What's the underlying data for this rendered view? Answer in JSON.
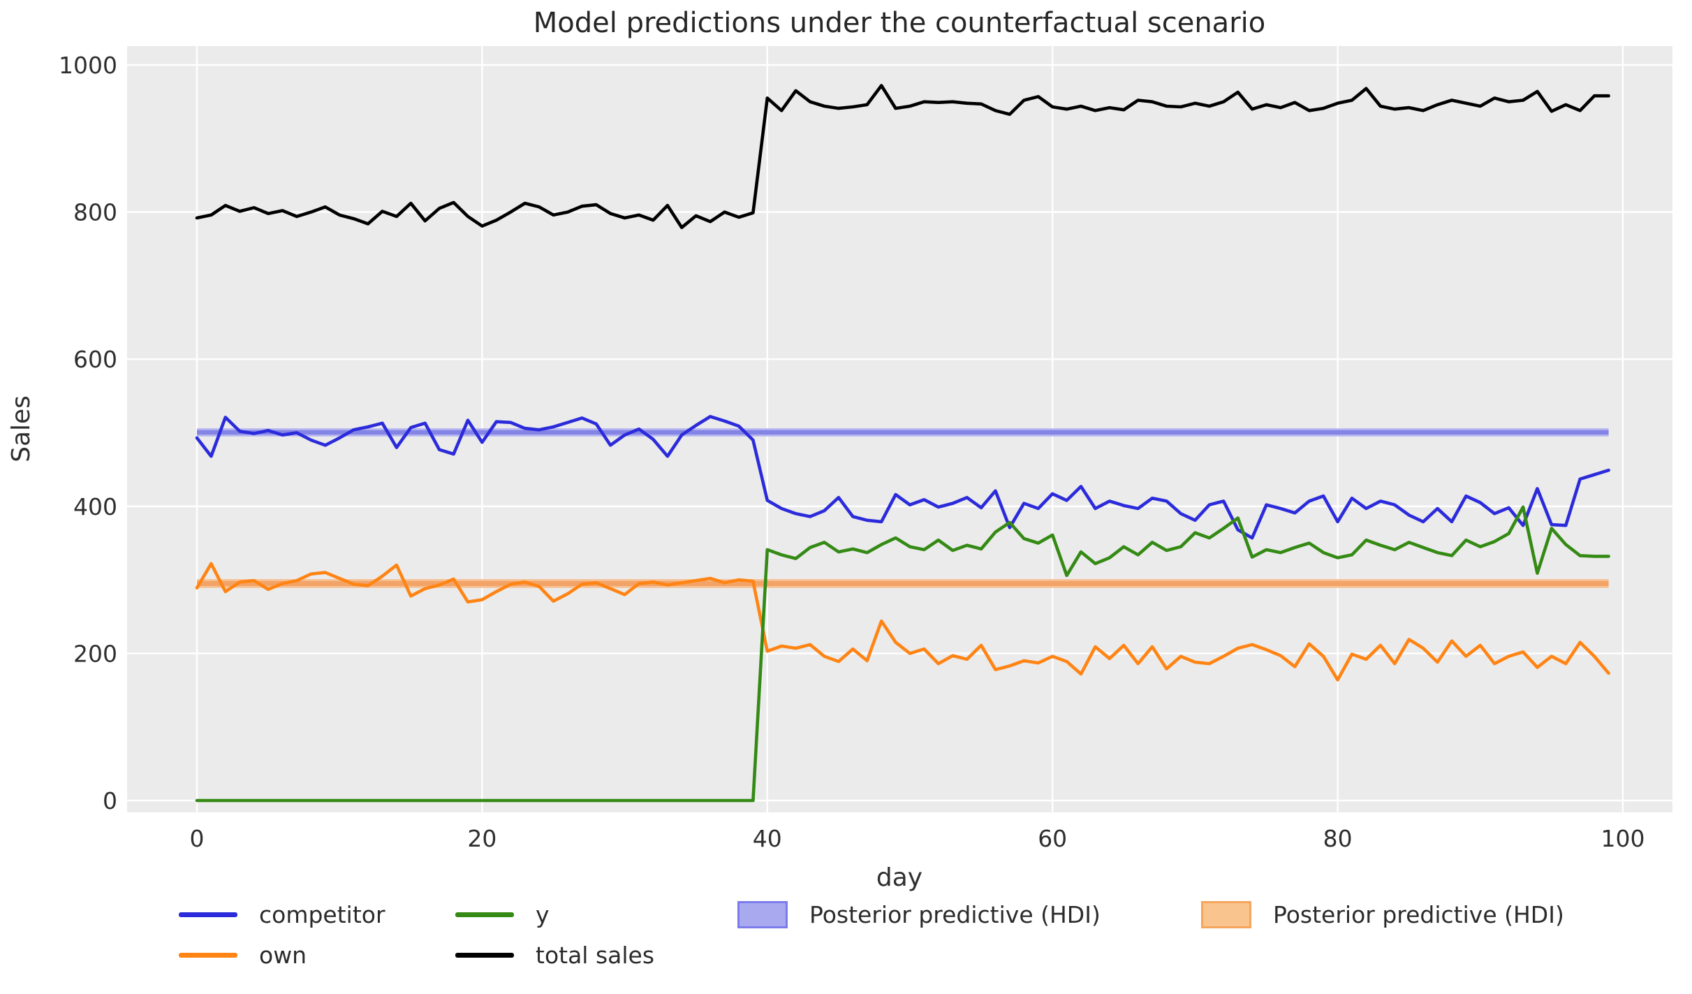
{
  "chart_data": {
    "type": "line",
    "title": "Model predictions under the counterfactual scenario",
    "xlabel": "day",
    "ylabel": "Sales",
    "xlim": [
      -4.9,
      103.5
    ],
    "ylim": [
      -16,
      1026
    ],
    "grid": true,
    "x_ticks": [
      0,
      20,
      40,
      60,
      80,
      100
    ],
    "x_tick_labels": [
      "0",
      "20",
      "40",
      "60",
      "80",
      "100"
    ],
    "y_ticks": [
      0,
      200,
      400,
      600,
      800,
      1000
    ],
    "y_tick_labels": [
      "0",
      "200",
      "400",
      "600",
      "800",
      "1000"
    ],
    "x": "day index 0..99",
    "series": [
      {
        "name": "competitor",
        "color": "#2b2bdb",
        "values": [
          493,
          468,
          521,
          502,
          499,
          503,
          497,
          500,
          490,
          483,
          493,
          504,
          508,
          513,
          480,
          507,
          513,
          477,
          471,
          517,
          487,
          515,
          514,
          506,
          504,
          508,
          514,
          520,
          512,
          483,
          497,
          505,
          491,
          468,
          497,
          510,
          522,
          516,
          509,
          490,
          408,
          397,
          390,
          386,
          394,
          412,
          386,
          381,
          379,
          416,
          402,
          409,
          399,
          404,
          412,
          398,
          421,
          371,
          404,
          397,
          417,
          408,
          427,
          397,
          407,
          401,
          397,
          411,
          407,
          390,
          381,
          402,
          407,
          368,
          357,
          402,
          397,
          391,
          407,
          414,
          379,
          411,
          397,
          407,
          402,
          388,
          379,
          397,
          379,
          414,
          405,
          390,
          398,
          374,
          424,
          375,
          374,
          437,
          443,
          449
        ]
      },
      {
        "name": "own",
        "color": "#ff8414",
        "values": [
          289,
          322,
          284,
          297,
          299,
          287,
          295,
          299,
          308,
          310,
          302,
          294,
          292,
          305,
          320,
          278,
          288,
          293,
          301,
          270,
          273,
          284,
          294,
          297,
          291,
          271,
          281,
          294,
          296,
          288,
          280,
          295,
          297,
          293,
          296,
          299,
          302,
          296,
          300,
          298,
          203,
          210,
          207,
          212,
          196,
          189,
          206,
          190,
          244,
          215,
          200,
          206,
          186,
          197,
          192,
          211,
          178,
          183,
          190,
          187,
          196,
          189,
          172,
          209,
          193,
          211,
          186,
          209,
          179,
          196,
          188,
          186,
          196,
          207,
          212,
          205,
          197,
          182,
          213,
          196,
          164,
          199,
          192,
          211,
          186,
          219,
          207,
          188,
          217,
          196,
          211,
          186,
          196,
          202,
          181,
          196,
          186,
          215,
          196,
          173
        ]
      },
      {
        "name": "y",
        "color": "#348a14",
        "values": [
          0,
          0,
          0,
          0,
          0,
          0,
          0,
          0,
          0,
          0,
          0,
          0,
          0,
          0,
          0,
          0,
          0,
          0,
          0,
          0,
          0,
          0,
          0,
          0,
          0,
          0,
          0,
          0,
          0,
          0,
          0,
          0,
          0,
          0,
          0,
          0,
          0,
          0,
          0,
          0,
          341,
          334,
          329,
          344,
          351,
          338,
          342,
          337,
          348,
          357,
          345,
          341,
          354,
          340,
          347,
          342,
          365,
          378,
          356,
          350,
          361,
          306,
          338,
          322,
          330,
          345,
          334,
          351,
          340,
          345,
          364,
          357,
          370,
          384,
          331,
          341,
          337,
          344,
          350,
          337,
          330,
          334,
          354,
          347,
          341,
          351,
          344,
          337,
          333,
          354,
          345,
          352,
          363,
          399,
          309,
          370,
          348,
          333,
          332,
          332
        ]
      },
      {
        "name": "total sales",
        "color": "#000000",
        "values": [
          792,
          796,
          809,
          801,
          806,
          798,
          802,
          794,
          800,
          807,
          796,
          791,
          784,
          801,
          794,
          812,
          788,
          805,
          813,
          794,
          781,
          789,
          800,
          812,
          807,
          796,
          800,
          808,
          810,
          798,
          792,
          796,
          789,
          809,
          779,
          795,
          787,
          800,
          793,
          799,
          955,
          938,
          965,
          950,
          944,
          941,
          943,
          946,
          972,
          941,
          944,
          950,
          949,
          950,
          948,
          947,
          938,
          933,
          952,
          957,
          943,
          940,
          944,
          938,
          942,
          939,
          952,
          950,
          944,
          943,
          948,
          944,
          950,
          963,
          940,
          946,
          942,
          949,
          938,
          941,
          948,
          952,
          968,
          944,
          940,
          942,
          938,
          946,
          952,
          948,
          944,
          955,
          950,
          952,
          964,
          937,
          946,
          938,
          958,
          958
        ]
      }
    ],
    "bands": [
      {
        "name": "Posterior predictive (HDI) — competitor",
        "lo": 495,
        "hi": 506,
        "inner_lo": 497.5,
        "inner_hi": 503.5,
        "x_start": 0,
        "x_end": 99,
        "fill": "#b5b5f1",
        "inner_fill": "#8484e5"
      },
      {
        "name": "Posterior predictive (HDI) — own",
        "lo": 289,
        "hi": 301,
        "inner_lo": 291.5,
        "inner_hi": 298.5,
        "x_start": 0,
        "x_end": 99,
        "fill": "#f7c296",
        "inner_fill": "#f2a468"
      }
    ],
    "colors": {
      "figure_background": "#ffffff",
      "axes_background": "#ebebeb",
      "gridline": "#ffffff",
      "text": "#2e2e2e"
    },
    "legend_position": "bottom"
  },
  "legend": {
    "items": [
      {
        "label": "competitor",
        "swatch": "line",
        "color": "#2b2bdb"
      },
      {
        "label": "own",
        "swatch": "line",
        "color": "#ff8414"
      },
      {
        "label": "y",
        "swatch": "line",
        "color": "#348a14"
      },
      {
        "label": "total sales",
        "swatch": "line",
        "color": "#000000"
      },
      {
        "label": "Posterior predictive (HDI)",
        "swatch": "patch",
        "color": "#a9a9f0",
        "border": "#7b7bec"
      },
      {
        "label": "Posterior predictive (HDI)",
        "swatch": "patch",
        "color": "#f9c48e",
        "border": "#f5a55c"
      }
    ]
  }
}
